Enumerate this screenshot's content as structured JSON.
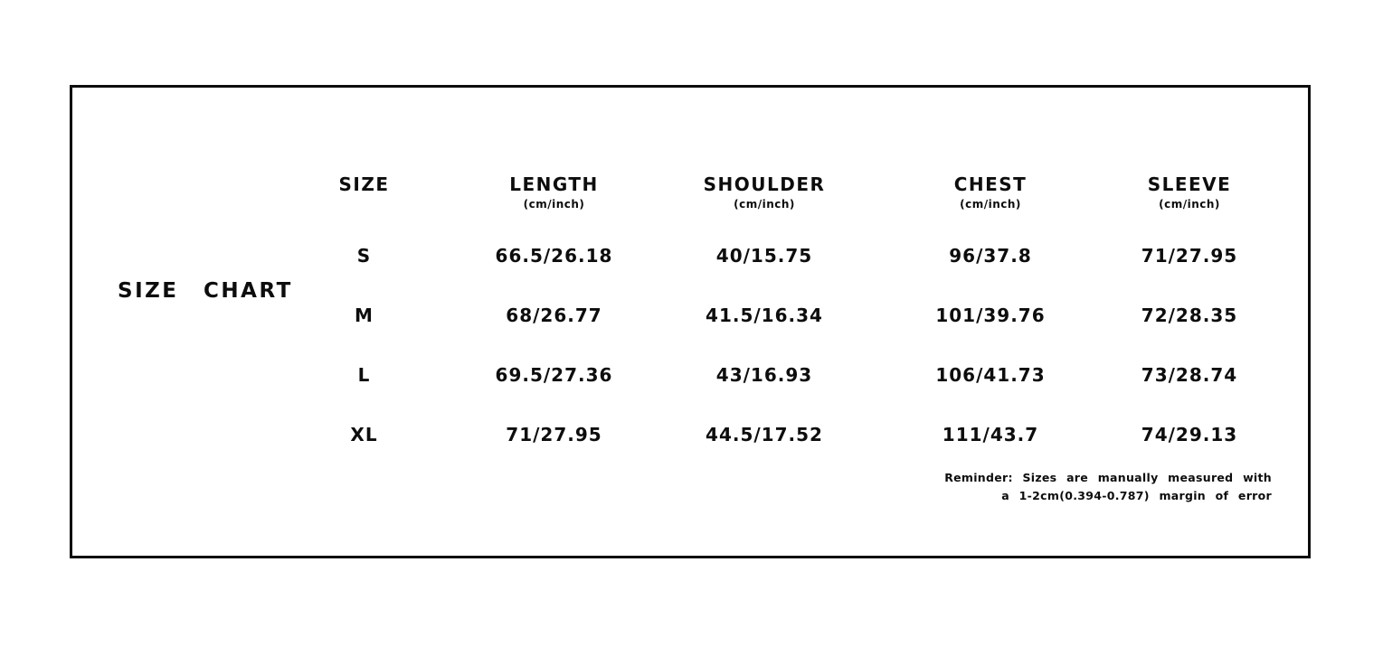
{
  "chart_data": {
    "type": "table",
    "title": "SIZE CHART",
    "columns": [
      {
        "label": "SIZE",
        "unit": ""
      },
      {
        "label": "LENGTH",
        "unit": "(cm/inch)"
      },
      {
        "label": "SHOULDER",
        "unit": "(cm/inch)"
      },
      {
        "label": "CHEST",
        "unit": "(cm/inch)"
      },
      {
        "label": "SLEEVE",
        "unit": "(cm/inch)"
      }
    ],
    "rows": [
      {
        "size": "S",
        "length_cm_inch": "66.5/26.18",
        "shoulder_cm_inch": "40/15.75",
        "chest_cm_inch": "96/37.8",
        "sleeve_cm_inch": "71/27.95"
      },
      {
        "size": "M",
        "length_cm_inch": "68/26.77",
        "shoulder_cm_inch": "41.5/16.34",
        "chest_cm_inch": "101/39.76",
        "sleeve_cm_inch": "72/28.35"
      },
      {
        "size": "L",
        "length_cm_inch": "69.5/27.36",
        "shoulder_cm_inch": "43/16.93",
        "chest_cm_inch": "106/41.73",
        "sleeve_cm_inch": "73/28.74"
      },
      {
        "size": "XL",
        "length_cm_inch": "71/27.95",
        "shoulder_cm_inch": "44.5/17.52",
        "chest_cm_inch": "111/43.7",
        "sleeve_cm_inch": "74/29.13"
      }
    ],
    "note": [
      "Reminder: Sizes are manually measured with",
      "a 1-2cm(0.394-0.787) margin of error"
    ],
    "layout_hints": {
      "grid": false,
      "legend": "none"
    }
  },
  "colors": {
    "text": "#0d0d0d",
    "border": "#0d0d0d",
    "background": "#ffffff"
  }
}
